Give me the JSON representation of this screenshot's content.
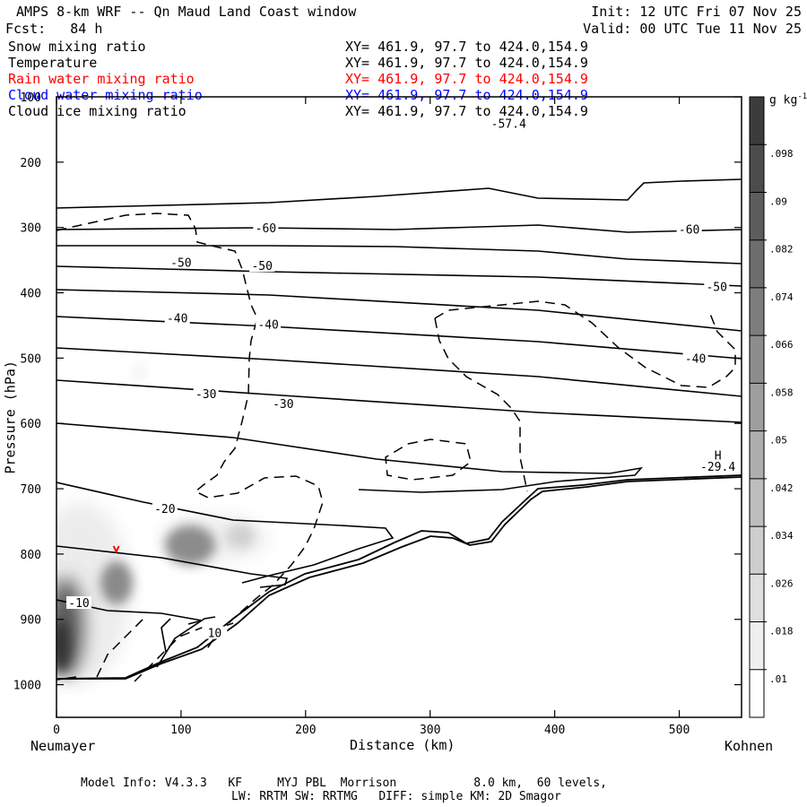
{
  "header": {
    "title": "AMPS 8-km WRF -- Qn Maud Land Coast window",
    "forecast": "Fcst:   84 h",
    "init": "Init: 12 UTC Fri 07 Nov 25",
    "valid": "Valid: 00 UTC Tue 11 Nov 25"
  },
  "fields": [
    {
      "name": "Snow mixing ratio",
      "xy": "XY= 461.9, 97.7 to 424.0,154.9",
      "color": "#000000"
    },
    {
      "name": "Temperature",
      "xy": "XY= 461.9, 97.7 to 424.0,154.9",
      "color": "#000000"
    },
    {
      "name": "Rain water mixing ratio",
      "xy": "XY= 461.9, 97.7 to 424.0,154.9",
      "color": "#ff0000"
    },
    {
      "name": "Cloud water mixing ratio",
      "xy": "XY= 461.9, 97.7 to 424.0,154.9",
      "color": "#0000ff"
    },
    {
      "name": "Cloud ice mixing ratio",
      "xy": "XY= 461.9, 97.7 to 424.0,154.9",
      "color": "#000000"
    }
  ],
  "footer": {
    "line1": "Model Info: V4.3.3   KF     MYJ PBL  Morrison           8.0 km,  60 levels,",
    "line2": "LW: RRTM SW: RRTMG   DIFF: simple KM: 2D Smagor"
  },
  "chart_data": {
    "type": "cross-section",
    "xlabel": "Distance (km)",
    "ylabel": "Pressure (hPa)",
    "xlim": [
      0,
      550
    ],
    "ylim": [
      1050,
      100
    ],
    "x_ticks": [
      0,
      100,
      200,
      300,
      400,
      500
    ],
    "y_ticks": [
      100,
      200,
      300,
      400,
      500,
      600,
      700,
      800,
      900,
      1000
    ],
    "endpoint_left": "Neumayer",
    "endpoint_right": "Kohnen",
    "colorbar": {
      "unit": "g kg",
      "unit_exp": "-1",
      "labels": [
        ".01",
        ".018",
        ".026",
        ".034",
        ".042",
        ".05",
        ".058",
        ".066",
        ".074",
        ".082",
        ".09",
        ".098"
      ]
    },
    "temperature_contour_labels": [
      {
        "text": "-60",
        "x": 168,
        "p": 303
      },
      {
        "text": "-60",
        "x": 508,
        "p": 305
      },
      {
        "text": "-50",
        "x": 100,
        "p": 356
      },
      {
        "text": "-50",
        "x": 165,
        "p": 361
      },
      {
        "text": "-50",
        "x": 530,
        "p": 393
      },
      {
        "text": "-40",
        "x": 97,
        "p": 441
      },
      {
        "text": "-40",
        "x": 170,
        "p": 451
      },
      {
        "text": "-40",
        "x": 513,
        "p": 503
      },
      {
        "text": "-30",
        "x": 120,
        "p": 557
      },
      {
        "text": "-30",
        "x": 182,
        "p": 572
      },
      {
        "text": "-20",
        "x": 87,
        "p": 733
      },
      {
        "text": "-10",
        "x": 18,
        "p": 877
      },
      {
        "text": "10",
        "x": 127,
        "p": 923
      }
    ],
    "annotations": [
      {
        "text": "H",
        "x": 531,
        "p": 650
      },
      {
        "text": "-29.4",
        "x": 531,
        "p": 667
      },
      {
        "text": "-57.4",
        "x": 363,
        "p": 142
      }
    ],
    "snow_maxima": [
      {
        "x": 2,
        "p": 940,
        "value": 0.09
      },
      {
        "x": 48,
        "p": 845,
        "value": 0.05
      },
      {
        "x": 103,
        "p": 805,
        "value": 0.058
      },
      {
        "x": 145,
        "p": 795,
        "value": 0.026
      }
    ],
    "rain_marker": {
      "x": 48,
      "p": 792
    }
  }
}
